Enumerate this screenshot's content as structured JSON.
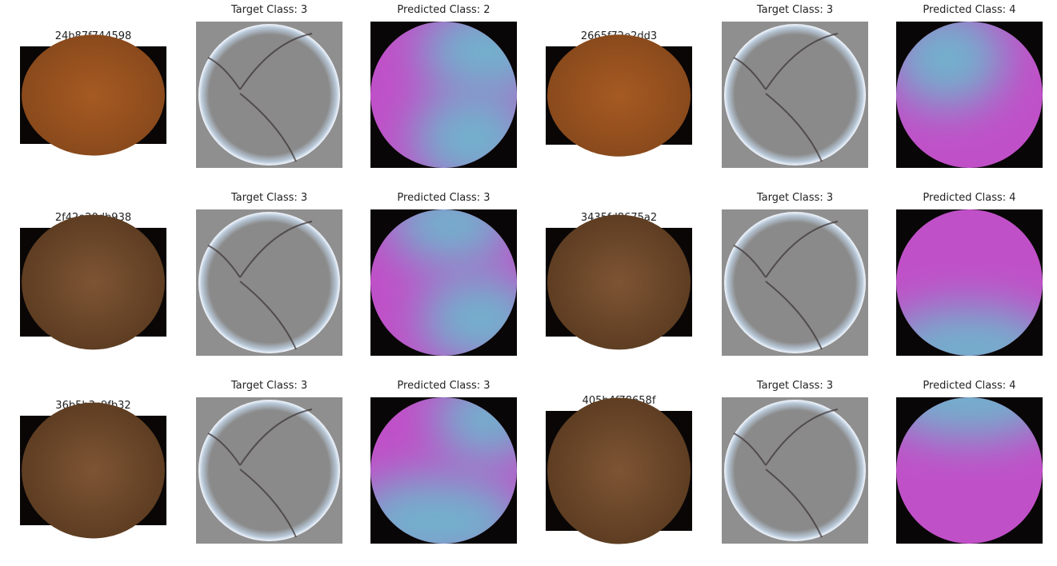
{
  "samples": [
    {
      "id": "24b87f744598",
      "target": "Target Class: 3",
      "predicted": "Predicted Class: 2"
    },
    {
      "id": "2665f72e2dd3",
      "target": "Target Class: 3",
      "predicted": "Predicted Class: 4"
    },
    {
      "id": "2f42e20db938",
      "target": "Target Class: 3",
      "predicted": "Predicted Class: 3"
    },
    {
      "id": "3435fd8675a2",
      "target": "Target Class: 3",
      "predicted": "Predicted Class: 4"
    },
    {
      "id": "36b5b3c9fb32",
      "target": "Target Class: 3",
      "predicted": "Predicted Class: 3"
    },
    {
      "id": "405b4f78658f",
      "target": "Target Class: 3",
      "predicted": "Predicted Class: 4"
    }
  ]
}
